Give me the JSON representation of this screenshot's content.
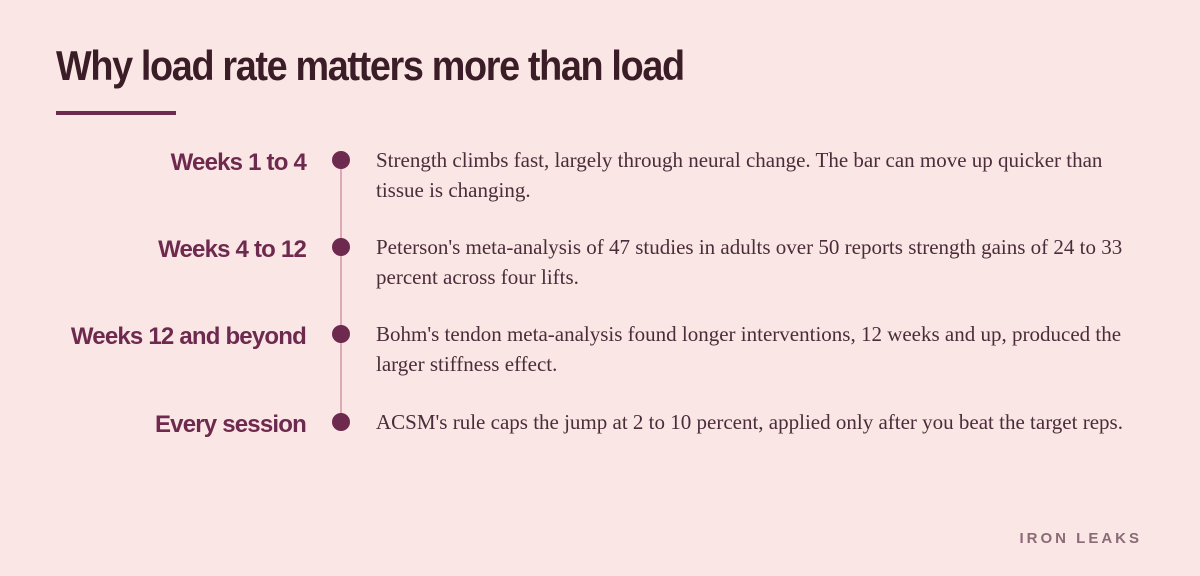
{
  "title": "Why load rate matters more than load",
  "timeline": [
    {
      "label": "Weeks 1 to 4",
      "text": "Strength climbs fast, largely through neural change. The bar can move up quicker than tissue is changing."
    },
    {
      "label": "Weeks 4 to 12",
      "text": "Peterson's meta-analysis of 47 studies in adults over 50 reports strength gains of 24 to 33 percent across four lifts."
    },
    {
      "label": "Weeks 12 and beyond",
      "text": "Bohm's tendon meta-analysis found longer interventions, 12 weeks and up, produced the larger stiffness effect."
    },
    {
      "label": "Every session",
      "text": "ACSM's rule caps the jump at 2 to 10 percent, applied only after you beat the target reps."
    }
  ],
  "footer": "IRON LEAKS",
  "colors": {
    "background": "#fae6e4",
    "accent": "#6e2a4e",
    "title": "#3a1d26",
    "line": "#dcaab6",
    "body_text": "#4a2c3a",
    "footer": "#8a6b78"
  }
}
